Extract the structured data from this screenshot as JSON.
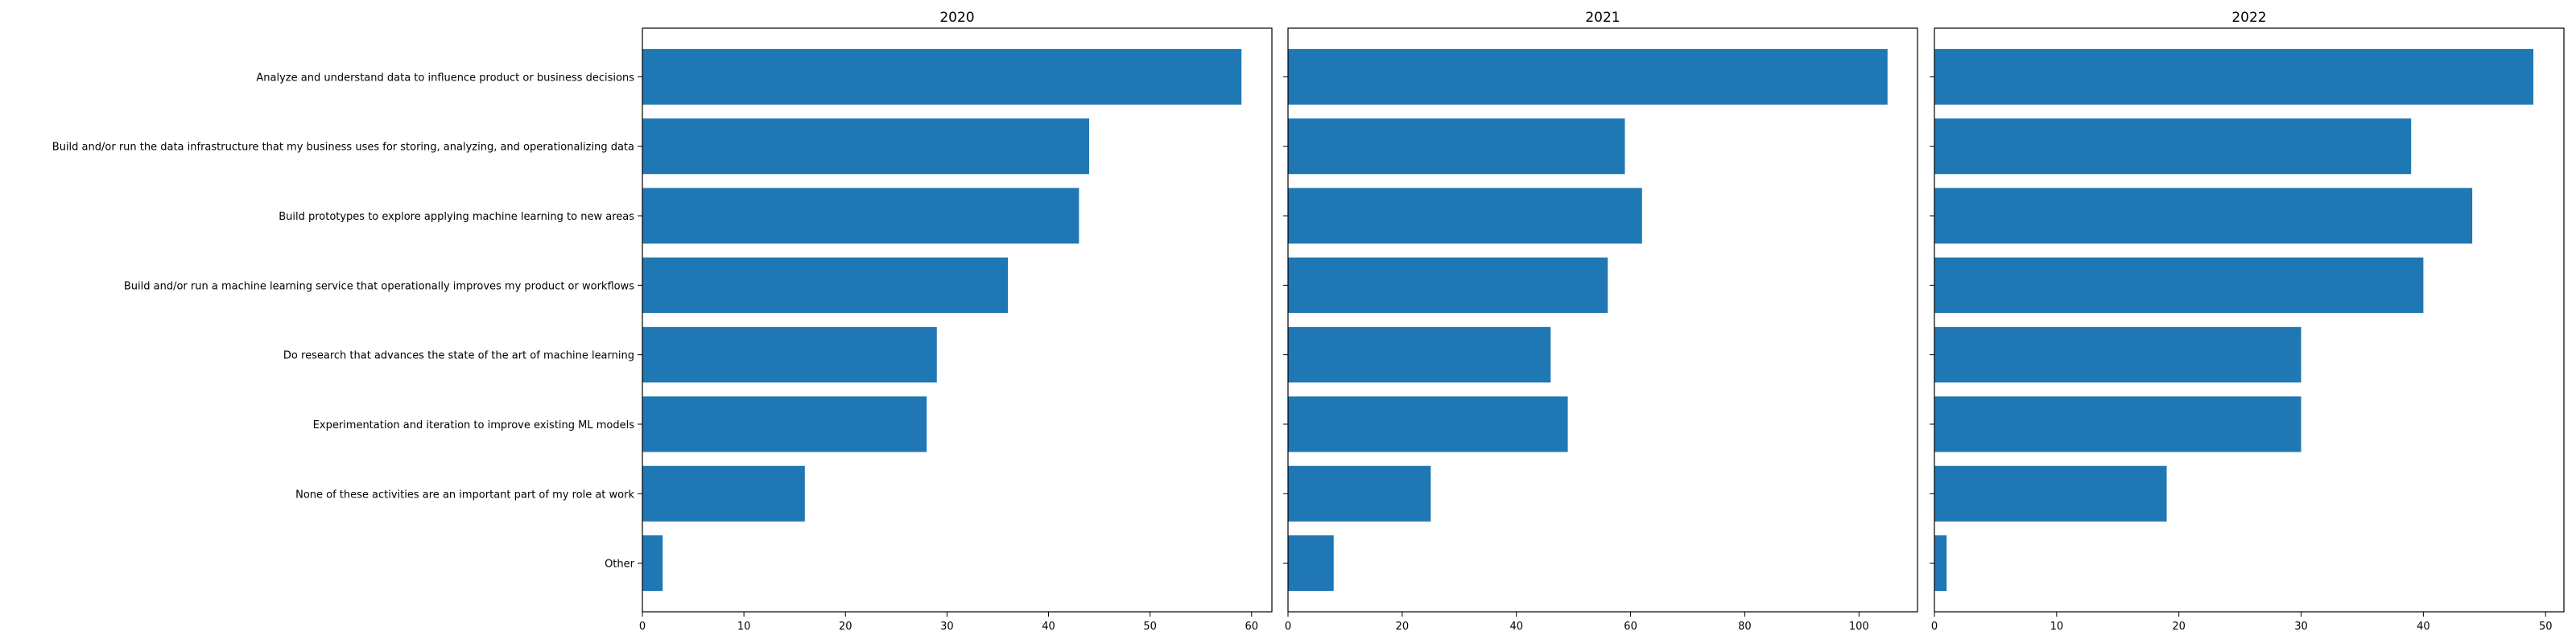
{
  "chart_data": {
    "type": "bar",
    "orientation": "horizontal",
    "bar_color": "#1f77b4",
    "grid": false,
    "categories": [
      "Analyze and understand data to influence product or business decisions",
      "Build and/or run the data infrastructure that my business uses for storing, analyzing, and operationalizing data",
      "Build prototypes to explore applying machine learning to new areas",
      "Build and/or run a machine learning service that operationally improves my product or workflows",
      "Do research that advances the state of the art of machine learning",
      "Experimentation and iteration to improve existing ML models",
      "None of these activities are an important part of my role at work",
      "Other"
    ],
    "panels": [
      {
        "title": "2020",
        "values": [
          59,
          44,
          43,
          36,
          29,
          28,
          16,
          2
        ],
        "xlim": [
          0,
          62
        ],
        "xticks": [
          0,
          10,
          20,
          30,
          40,
          50,
          60
        ]
      },
      {
        "title": "2021",
        "values": [
          105,
          59,
          62,
          56,
          46,
          49,
          25,
          8
        ],
        "xlim": [
          0,
          110.25
        ],
        "xticks": [
          0,
          20,
          40,
          60,
          80,
          100
        ]
      },
      {
        "title": "2022",
        "values": [
          49,
          39,
          44,
          40,
          30,
          30,
          19,
          1
        ],
        "xlim": [
          0,
          51.5
        ],
        "xticks": [
          0,
          10,
          20,
          30,
          40,
          50
        ]
      }
    ]
  }
}
